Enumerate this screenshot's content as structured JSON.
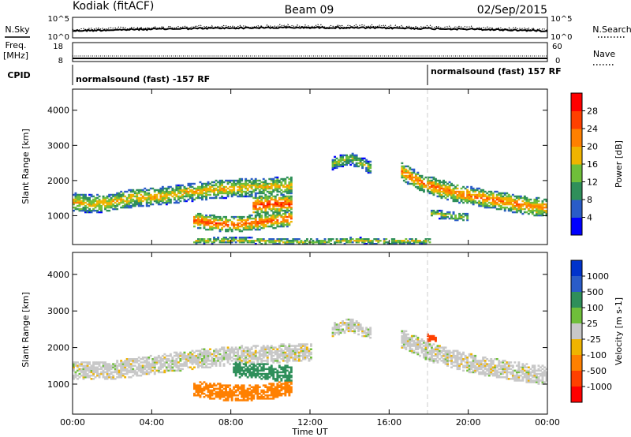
{
  "header": {
    "station": "Kodiak (fitACF)",
    "beam": "Beam 09",
    "date": "02/Sep/2015"
  },
  "noise_panel": {
    "left_label": "N.Sky",
    "right_label": "N.Search",
    "left_ticks": [
      "10^5",
      "10^0"
    ],
    "right_ticks": [
      "10^5",
      "10^0"
    ]
  },
  "freq_panel": {
    "left_label_line1": "Freq.",
    "left_label_line2": "[MHz]",
    "left_ticks": [
      "18",
      "8"
    ],
    "right_label": "Nave",
    "right_ticks": [
      "60",
      "0"
    ]
  },
  "cpid": {
    "label": "CPID",
    "segments": [
      {
        "text": "normalsound (fast) -157 RF",
        "start_hour": 0
      },
      {
        "text": "normalsound (fast) 157 RF",
        "start_hour": 18
      }
    ]
  },
  "x_axis": {
    "label": "Time UT",
    "ticks": [
      "00:00",
      "04:00",
      "08:00",
      "12:00",
      "16:00",
      "20:00",
      "00:00"
    ]
  },
  "y_axis": {
    "label": "Slant Range [km]",
    "ticks": [
      "1000",
      "2000",
      "3000",
      "4000"
    ]
  },
  "power_colorbar": {
    "label": "Power [dB]",
    "ticks": [
      "4",
      "8",
      "12",
      "16",
      "20",
      "24",
      "28"
    ],
    "colors": [
      "#0000ff",
      "#2a5cc8",
      "#2f8f5a",
      "#6fbf3a",
      "#f0b400",
      "#ff8000",
      "#ff4000",
      "#ff0000"
    ]
  },
  "velocity_colorbar": {
    "label": "Velocity [m s-1]",
    "ticks": [
      "1000",
      "500",
      "100",
      "25",
      "-25",
      "-100",
      "-500",
      "-1000"
    ],
    "colors": [
      "#0033cc",
      "#2a5cc8",
      "#2f8f5a",
      "#6fbf3a",
      "#c8c8c8",
      "#f0b400",
      "#ff8000",
      "#ff4000",
      "#ff0000"
    ]
  },
  "chart_data": [
    {
      "type": "heatmap",
      "title": "Power [dB]",
      "xlabel": "Time UT",
      "ylabel": "Slant Range [km]",
      "xlim": [
        0,
        24
      ],
      "ylim": [
        180,
        4600
      ],
      "value_range": [
        0,
        30
      ],
      "bands": [
        {
          "t": [
            0,
            1,
            2,
            3,
            4,
            5,
            6,
            7,
            8,
            9,
            10,
            11
          ],
          "r": [
            1420,
            1360,
            1420,
            1520,
            1560,
            1630,
            1700,
            1760,
            1800,
            1830,
            1860,
            1900
          ],
          "width": 260,
          "peak": 18
        },
        {
          "t": [
            6,
            7,
            8,
            9,
            10,
            11
          ],
          "r": [
            900,
            820,
            780,
            820,
            880,
            950
          ],
          "width": 220,
          "peak": 24
        },
        {
          "t": [
            9,
            10,
            11
          ],
          "r": [
            1300,
            1380,
            1350
          ],
          "width": 260,
          "peak": 26
        },
        {
          "t": [
            13,
            14,
            15
          ],
          "r": [
            2500,
            2650,
            2400
          ],
          "width": 180,
          "peak": 14
        },
        {
          "t": [
            16.5,
            17.5,
            18.5,
            19.5,
            20.5,
            21.5,
            22.5,
            23.5,
            24
          ],
          "r": [
            2300,
            2000,
            1800,
            1650,
            1550,
            1450,
            1350,
            1280,
            1250
          ],
          "width": 260,
          "peak": 22
        },
        {
          "t": [
            18,
            19,
            20
          ],
          "r": [
            1100,
            1020,
            980
          ],
          "width": 120,
          "peak": 16
        },
        {
          "t": [
            6,
            8,
            10,
            12,
            14,
            16,
            18
          ],
          "r": [
            300,
            330,
            300,
            280,
            320,
            300,
            310
          ],
          "width": 90,
          "peak": 16
        }
      ]
    },
    {
      "type": "heatmap",
      "title": "Velocity [m s-1]",
      "xlabel": "Time UT",
      "ylabel": "Slant Range [km]",
      "xlim": [
        0,
        24
      ],
      "ylim": [
        180,
        4600
      ],
      "value_range": [
        -1000,
        1000
      ],
      "bands": [
        {
          "t": [
            0,
            2,
            4,
            6,
            8,
            10,
            12
          ],
          "r": [
            1400,
            1400,
            1550,
            1700,
            1800,
            1850,
            1900
          ],
          "width": 260,
          "velocity": 0
        },
        {
          "t": [
            6,
            8,
            10,
            11
          ],
          "r": [
            900,
            780,
            820,
            950
          ],
          "width": 220,
          "velocity": -150
        },
        {
          "t": [
            8,
            9,
            10,
            11
          ],
          "r": [
            1450,
            1400,
            1350,
            1300
          ],
          "width": 220,
          "velocity": 300
        },
        {
          "t": [
            13,
            14,
            15
          ],
          "r": [
            2500,
            2650,
            2400
          ],
          "width": 180,
          "velocity": 0
        },
        {
          "t": [
            16.5,
            18,
            20,
            22,
            24
          ],
          "r": [
            2300,
            1900,
            1600,
            1400,
            1250
          ],
          "width": 260,
          "velocity": 0
        },
        {
          "t": [
            17.8,
            18.3
          ],
          "r": [
            2300,
            2300
          ],
          "width": 100,
          "velocity": -600
        }
      ]
    }
  ]
}
